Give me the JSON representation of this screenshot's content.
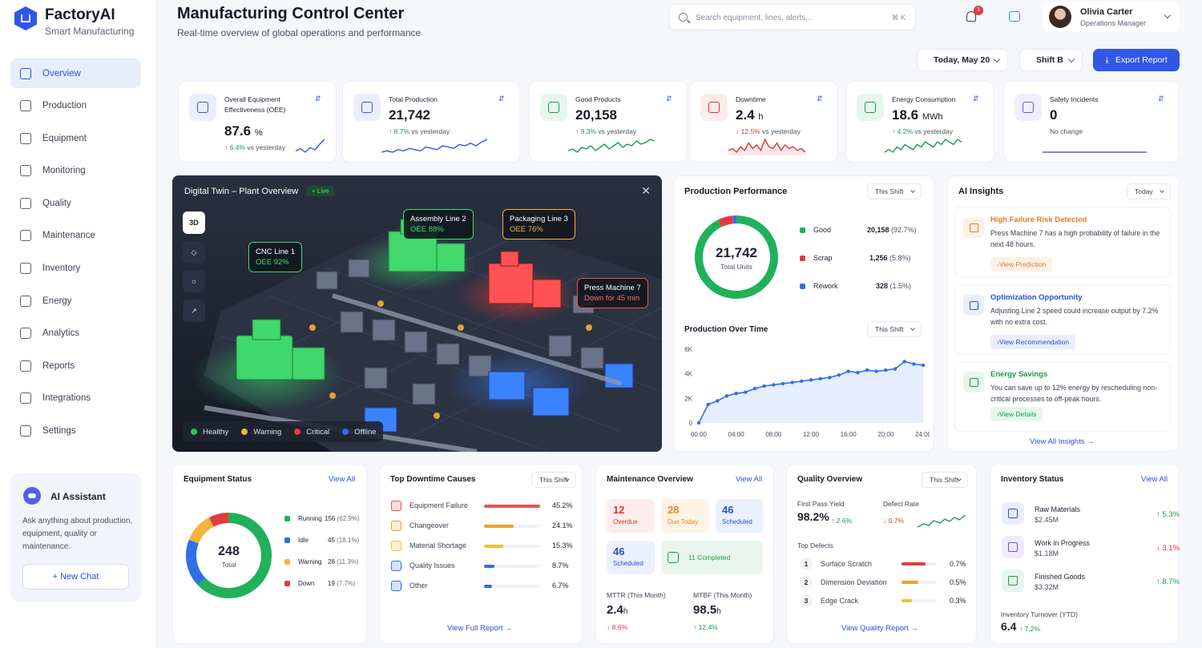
{
  "brand": {
    "name": "FactoryAI",
    "tagline": "Smart Manufacturing"
  },
  "nav": [
    "Overview",
    "Production",
    "Equipment",
    "Monitoring",
    "Quality",
    "Maintenance",
    "Inventory",
    "Energy",
    "Analytics",
    "Reports",
    "Integrations",
    "Settings"
  ],
  "nav_icons": [
    "home-icon",
    "factory-icon",
    "cube-icon",
    "monitor-icon",
    "shield-icon",
    "wrench-icon",
    "box-icon",
    "bolt-icon",
    "chart-icon",
    "file-icon",
    "plug-icon",
    "gear-icon"
  ],
  "assistant": {
    "title": "AI Assistant",
    "text": "Ask anything about production, equipment, quality or maintenance.",
    "button": "+ New Chat"
  },
  "header": {
    "title": "Manufacturing Control Center",
    "subtitle": "Real-time overview of global operations and performance",
    "search_placeholder": "Search equipment, lines, alerts...",
    "shortcut": "⌘ K",
    "notifications": "3"
  },
  "user": {
    "name": "Olivia Carter",
    "role": "Operations Manager"
  },
  "controls": {
    "date": "Today, May 20",
    "shift": "Shift B",
    "export": "Export Report"
  },
  "kpis": [
    {
      "title": "Overall Equipment Effectiveness (OEE)",
      "value": "87.6",
      "unit": "%",
      "delta": "6.4%",
      "delta_dir": "up",
      "note": "vs yesterday",
      "icon": "oee-icon",
      "color": "#2f57e8",
      "spark": [
        10,
        12,
        9,
        13,
        11,
        16,
        20
      ]
    },
    {
      "title": "Total Production",
      "value": "21,742",
      "unit": "",
      "delta": "8.7%",
      "delta_dir": "up",
      "note": "vs yesterday",
      "icon": "production-icon",
      "color": "#2f57e8",
      "spark": [
        8,
        9,
        8,
        10,
        9,
        11,
        10,
        9,
        12,
        11,
        10,
        13,
        12,
        11,
        14,
        13,
        15,
        13,
        16,
        18
      ]
    },
    {
      "title": "Good Products",
      "value": "20,158",
      "unit": "",
      "delta": "9.3%",
      "delta_dir": "up",
      "note": "vs yesterday",
      "icon": "leaf-icon",
      "color": "#1b9a4b",
      "spark": [
        9,
        10,
        8,
        11,
        10,
        12,
        9,
        11,
        13,
        10,
        12,
        14,
        11,
        13,
        12,
        15,
        13,
        14,
        16,
        15
      ]
    },
    {
      "title": "Downtime",
      "value": "2.4",
      "unit": "h",
      "delta": "12.5%",
      "delta_dir": "down",
      "note": "vs yesterday",
      "icon": "worker-icon",
      "color": "#d93636",
      "spark": [
        12,
        13,
        11,
        14,
        12,
        16,
        13,
        15,
        12,
        18,
        14,
        13,
        16,
        12,
        15,
        13,
        14,
        12,
        13,
        11
      ]
    },
    {
      "title": "Energy Consumption",
      "value": "18.6",
      "unit": "MWh",
      "delta": "4.2%",
      "delta_dir": "up",
      "note": "vs yesterday",
      "icon": "energy-icon",
      "color": "#1b9a4b",
      "spark": [
        10,
        11,
        10,
        12,
        11,
        13,
        12,
        11,
        13,
        12,
        14,
        13,
        12,
        14,
        13,
        15,
        14,
        13,
        15,
        14
      ]
    },
    {
      "title": "Safety Incidents",
      "value": "0",
      "unit": "",
      "delta": "",
      "delta_dir": "flat",
      "note": "No change",
      "icon": "safety-icon",
      "color": "#6b56d8",
      "spark": [
        12,
        12,
        12,
        12,
        12,
        12,
        12,
        12,
        12,
        12
      ]
    }
  ],
  "twin": {
    "title": "Digital Twin – Plant Overview",
    "live": "+ Live",
    "tools": [
      "3D",
      "layers-icon",
      "sun-icon",
      "expand-icon"
    ],
    "tags": [
      {
        "name": "CNC Line 1",
        "status": "OEE 92%",
        "color": "#3ddc6e"
      },
      {
        "name": "Assembly Line 2",
        "status": "OEE 88%",
        "color": "#3ddc6e"
      },
      {
        "name": "Packaging Line 3",
        "status": "OEE 76%",
        "color": "#f2b43a"
      },
      {
        "name": "Press Machine 7",
        "status": "Down for 45 min",
        "color": "#ff4b4b"
      }
    ],
    "legend": [
      {
        "label": "Healthy",
        "color": "#2fbf6a"
      },
      {
        "label": "Warning",
        "color": "#f2b43a"
      },
      {
        "label": "Critical",
        "color": "#e23c3c"
      },
      {
        "label": "Offline",
        "color": "#2f6fe8"
      }
    ]
  },
  "production_performance": {
    "title": "Production Performance",
    "filter": "This Shift",
    "total": "21,742",
    "total_label": "Total Units",
    "rows": [
      {
        "label": "Good",
        "value": "20,158",
        "pct": "(92.7%)",
        "color": "#20b15a"
      },
      {
        "label": "Scrap",
        "value": "1,256",
        "pct": "(5.8%)",
        "color": "#e23c3c"
      },
      {
        "label": "Rework",
        "value": "328",
        "pct": "(1.5%)",
        "color": "#2f6fe8"
      }
    ]
  },
  "chart_data": {
    "type": "area",
    "title": "Production Over Time",
    "filter": "This Shift",
    "x": [
      "00:00",
      "01:00",
      "02:00",
      "03:00",
      "04:00",
      "05:00",
      "06:00",
      "07:00",
      "08:00",
      "09:00",
      "10:00",
      "11:00",
      "12:00",
      "13:00",
      "14:00",
      "15:00",
      "16:00",
      "17:00",
      "18:00",
      "19:00",
      "20:00",
      "21:00",
      "22:00",
      "23:00",
      "24:00"
    ],
    "values": [
      0,
      1500,
      1800,
      2200,
      2400,
      2500,
      2800,
      3000,
      3100,
      3200,
      3300,
      3400,
      3500,
      3600,
      3700,
      3900,
      4200,
      4100,
      4300,
      4200,
      4300,
      4400,
      5000,
      4800,
      4700
    ],
    "xticks": [
      "00:00",
      "04:00",
      "08:00",
      "12:00",
      "16:00",
      "20:00",
      "24:00"
    ],
    "yticks": [
      "6K",
      "4K",
      "2K",
      "0"
    ],
    "ylim": [
      0,
      6000
    ],
    "color": "#2f6fe8"
  },
  "insights": {
    "title": "AI Insights",
    "filter": "Today",
    "view_all": "View All Insights →",
    "items": [
      {
        "title": "High Failure Risk Detected",
        "text": "Press Machine 7 has a high probability of failure in the next 48 hours.",
        "action": "View Prediction",
        "color": "#e07a2b",
        "bg": "#fdf1e6",
        "icon": "warning-icon"
      },
      {
        "title": "Optimization Opportunity",
        "text": "Adjusting Line 2 speed could increase output by 7.2% with no extra cost.",
        "action": "View Recommendation",
        "color": "#2a4fd9",
        "bg": "#e9eefc",
        "icon": "optimize-icon"
      },
      {
        "title": "Energy Savings",
        "text": "You can save up to 12% energy by rescheduling non-critical processes to off-peak hours.",
        "action": "View Details",
        "color": "#1b9a4b",
        "bg": "#e6f6ec",
        "icon": "energy-saving-icon"
      }
    ]
  },
  "equipment_status": {
    "title": "Equipment Status",
    "view_all": "View All",
    "total": "248",
    "total_label": "Total",
    "rows": [
      {
        "label": "Running",
        "value": "156",
        "pct": "(62.9%)",
        "color": "#20b15a",
        "count": 156
      },
      {
        "label": "Idle",
        "value": "45",
        "pct": "(18.1%)",
        "color": "#2f6fe8",
        "count": 45
      },
      {
        "label": "Warning",
        "value": "28",
        "pct": "(11.3%)",
        "color": "#f2b43a",
        "count": 28
      },
      {
        "label": "Down",
        "value": "19",
        "pct": "(7.7%)",
        "color": "#e23c3c",
        "count": 19
      }
    ]
  },
  "downtime": {
    "title": "Top Downtime Causes",
    "filter": "This Shift",
    "report": "View Full Report →",
    "rows": [
      {
        "label": "Equipment Failure",
        "pct": "45.2%",
        "value": 45.2,
        "color": "#e25656"
      },
      {
        "label": "Changeover",
        "pct": "24.1%",
        "value": 24.1,
        "color": "#e8a22c"
      },
      {
        "label": "Material Shortage",
        "pct": "15.3%",
        "value": 15.3,
        "color": "#f2c12e"
      },
      {
        "label": "Quality Issues",
        "pct": "8.7%",
        "value": 8.7,
        "color": "#2f6fe8"
      },
      {
        "label": "Other",
        "pct": "6.7%",
        "value": 6.7,
        "color": "#2f6fe8"
      }
    ]
  },
  "maintenance": {
    "title": "Maintenance Overview",
    "view_all": "View All",
    "tiles": [
      {
        "n": "12",
        "l": "Overdue",
        "color": "#d93636",
        "bg": "#fdecec"
      },
      {
        "n": "28",
        "l": "Due Today",
        "color": "#e08a2b",
        "bg": "#fdf2e4"
      },
      {
        "n": "46",
        "l": "Scheduled",
        "color": "#2a4fd9",
        "bg": "#eaf0fd"
      },
      {
        "n": "46",
        "l": "Scheduled",
        "color": "#2a4fd9",
        "bg": "#eaf0fd"
      },
      {
        "n": "11 Completed",
        "l": "",
        "color": "#1b9a4b",
        "bg": "#e8f6ed"
      }
    ],
    "mttr_label": "MTTR (This Month)",
    "mttr": "2.4",
    "mttr_unit": "h",
    "mttr_delta": "8.6%",
    "mtbf_label": "MTBF (This Month)",
    "mtbf": "98.5",
    "mtbf_unit": "h",
    "mtbf_delta": "12.4%"
  },
  "quality": {
    "title": "Quality Overview",
    "filter": "This Shift",
    "fpy_label": "First Pass Yield",
    "fpy": "98.2%",
    "fpy_delta": "2.6%",
    "defect_label": "Defect Rate",
    "defect": "0.7%",
    "defects_title": "Top Defects",
    "report": "View Quality Report →",
    "defects": [
      {
        "n": "1",
        "label": "Surface Scratch",
        "pct": "0.7%",
        "value": 0.7,
        "color": "#e23c3c"
      },
      {
        "n": "2",
        "label": "Dimension Deviation",
        "pct": "0.5%",
        "value": 0.5,
        "color": "#e8a22c"
      },
      {
        "n": "3",
        "label": "Edge Crack",
        "pct": "0.3%",
        "value": 0.3,
        "color": "#f2c12e"
      }
    ]
  },
  "inventory": {
    "title": "Inventory Status",
    "view_all": "View All",
    "rows": [
      {
        "label": "Raw Materials",
        "value": "$2.45M",
        "delta": "5.3%",
        "dir": "up",
        "color": "#2a4fd9",
        "bg": "#e9eefc",
        "icon": "raw-materials-icon"
      },
      {
        "label": "Work in Progress",
        "value": "$1.18M",
        "delta": "3.1%",
        "dir": "down",
        "color": "#7a4fd9",
        "bg": "#f0ebfc",
        "icon": "wip-icon"
      },
      {
        "label": "Finished Goods",
        "value": "$3.32M",
        "delta": "8.7%",
        "dir": "up",
        "color": "#1b9a4b",
        "bg": "#e6f6ec",
        "icon": "finished-goods-icon"
      }
    ],
    "turnover_label": "Inventory Turnover (YTD)",
    "turnover": "6.4",
    "turnover_delta": "7.2%"
  }
}
